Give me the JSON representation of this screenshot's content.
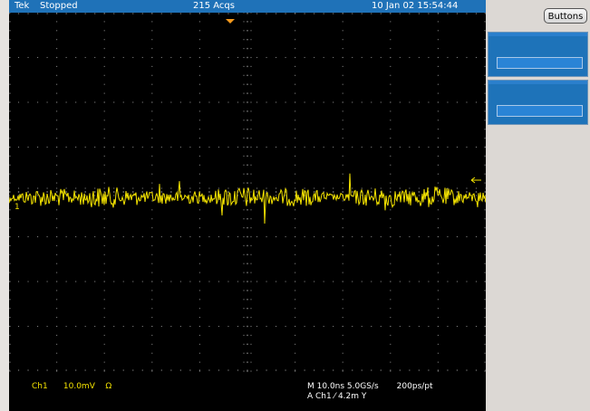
{
  "status_bar": {
    "brand": "Tek",
    "run_state": "Stopped",
    "acquisitions": "215 Acqs",
    "datetime": "10 Jan 02 15:54:44"
  },
  "buttons_label": "Buttons",
  "readouts": {
    "channel": "Ch1",
    "volts_per_div": "10.0mV",
    "impedance_symbol": "Ω",
    "timebase_line": "M 10.0ns 5.0GS/s",
    "resolution": "200ps/pt",
    "trigger_line": "A  Ch1  ⁄  4.2m     Y"
  },
  "markers": {
    "channel_marker": "1",
    "trigger_position_icon": "down-triangle-orange",
    "trigger_level_icon": "left-arrow-yellow"
  },
  "colors": {
    "trace": "#f5e400",
    "graticule": "#7c7c7c",
    "status_bar": "#1f72b8",
    "trigger_marker": "#f59a1d"
  },
  "display": {
    "horizontal_divisions": 10,
    "vertical_divisions": 8,
    "trace_visual": "noise burst trace around center line"
  }
}
